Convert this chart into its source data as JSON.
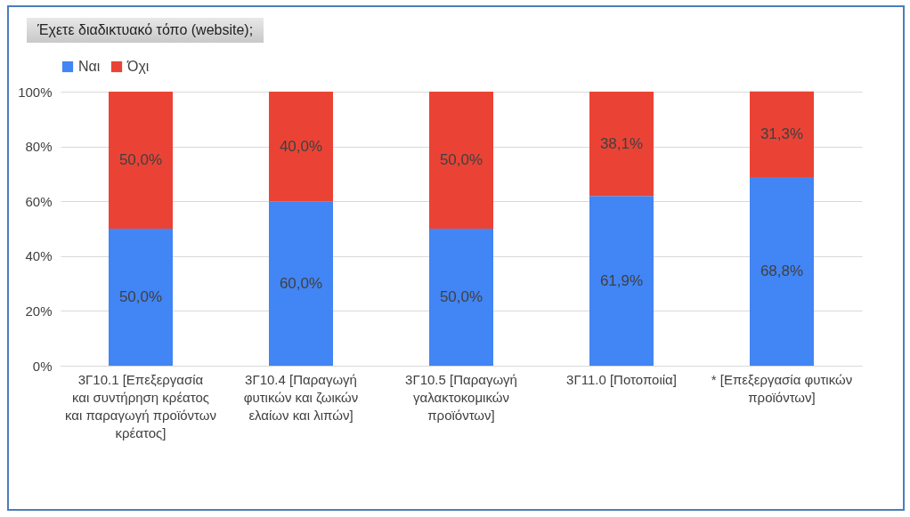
{
  "chart_data": {
    "type": "bar",
    "title": "Έχετε διαδικτυακό τόπο (website);",
    "categories": [
      "3Γ10.1 [Επεξεργασία και συντήρηση κρέατος και παραγωγή προϊόντων κρέατος]",
      "3Γ10.4 [Παραγωγή φυτικών και ζωικών ελαίων και λιπών]",
      "3Γ10.5 [Παραγωγή γαλακτοκομικών προϊόντων]",
      "3Γ11.0 [Ποτοποιία]",
      "* [Επεξεργασία φυτικών προϊόντων]"
    ],
    "series": [
      {
        "name": "Ναι",
        "color": "#4285f4",
        "values": [
          50.0,
          60.0,
          50.0,
          61.9,
          68.8
        ],
        "value_labels": [
          "50,0%",
          "60,0%",
          "50,0%",
          "61,9%",
          "68,8%"
        ]
      },
      {
        "name": "Όχι",
        "color": "#ea4335",
        "values": [
          50.0,
          40.0,
          50.0,
          38.1,
          31.3
        ],
        "value_labels": [
          "50,0%",
          "40,0%",
          "50,0%",
          "38,1%",
          "31,3%"
        ]
      }
    ],
    "stacked": true,
    "ylim": [
      0,
      100
    ],
    "yticks": [
      {
        "value": 0,
        "label": "0%"
      },
      {
        "value": 20,
        "label": "20%"
      },
      {
        "value": 40,
        "label": "40%"
      },
      {
        "value": 60,
        "label": "60%"
      },
      {
        "value": 80,
        "label": "80%"
      },
      {
        "value": 100,
        "label": "100%"
      }
    ],
    "grid": "y",
    "legend": "top"
  }
}
